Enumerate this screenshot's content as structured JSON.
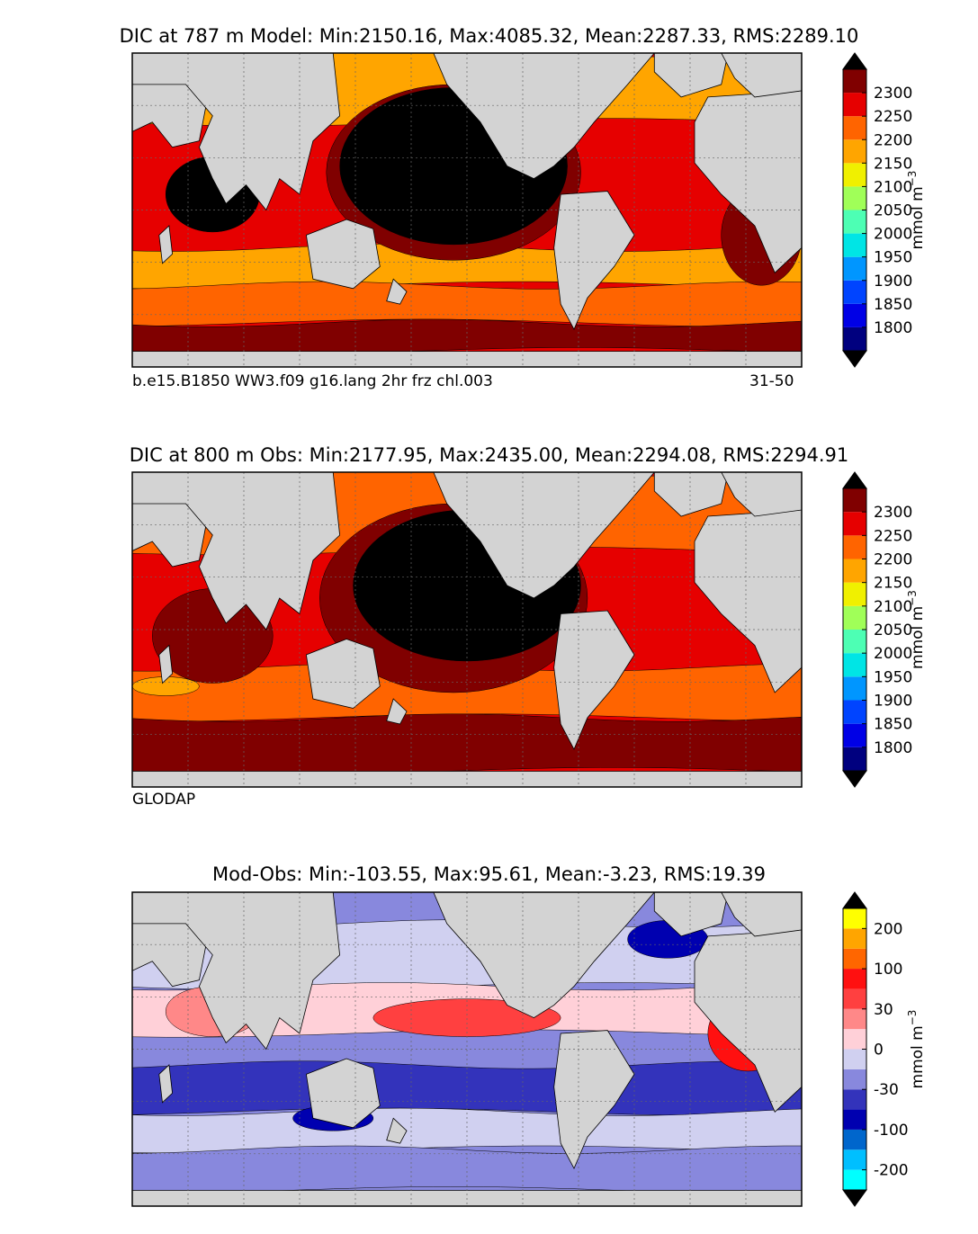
{
  "chart_data": [
    {
      "type": "heatmap",
      "title": "DIC at 787 m Model: Min:2150.16, Max:4085.32, Mean:2287.33, RMS:2289.10",
      "caption_left": "b.e15.B1850 WW3.f09 g16.lang 2hr frz chl.003",
      "caption_right": "31-50",
      "colorbar_label": "mmol m",
      "colorbar_label_exponent": "−3",
      "colorbar_ticks": [
        "1800",
        "1850",
        "1900",
        "1950",
        "2000",
        "2050",
        "2100",
        "2150",
        "2200",
        "2250",
        "2300"
      ],
      "colorbar_colors": [
        "#00007f",
        "#0000e6",
        "#0044ff",
        "#0096ff",
        "#00e5e5",
        "#4dffb4",
        "#a0ff58",
        "#f0f000",
        "#ffa500",
        "#ff6400",
        "#e60000",
        "#800000"
      ],
      "extend": "both",
      "map_colors": {
        "land": "#d3d3d3",
        "missing": "#ffffff",
        "high": "#000000"
      }
    },
    {
      "type": "heatmap",
      "title": "DIC at 800 m Obs: Min:2177.95, Max:2435.00, Mean:2294.08, RMS:2294.91",
      "caption_left": "GLODAP",
      "caption_right": "",
      "colorbar_label": "mmol m",
      "colorbar_label_exponent": "−3",
      "colorbar_ticks": [
        "1800",
        "1850",
        "1900",
        "1950",
        "2000",
        "2050",
        "2100",
        "2150",
        "2200",
        "2250",
        "2300"
      ],
      "colorbar_colors": [
        "#00007f",
        "#0000e6",
        "#0044ff",
        "#0096ff",
        "#00e5e5",
        "#4dffb4",
        "#a0ff58",
        "#f0f000",
        "#ffa500",
        "#ff6400",
        "#e60000",
        "#800000"
      ],
      "extend": "both",
      "map_colors": {
        "land": "#d3d3d3",
        "missing": "#ffffff",
        "high": "#000000"
      }
    },
    {
      "type": "heatmap",
      "title": "Mod-Obs: Min:-103.55, Max:95.61, Mean:-3.23, RMS:19.39",
      "caption_left": "",
      "caption_right": "",
      "colorbar_label": "mmol m",
      "colorbar_label_exponent": "−3",
      "colorbar_ticks": [
        "-200",
        "-100",
        "-30",
        "0",
        "30",
        "100",
        "200"
      ],
      "colorbar_colors": [
        "#00ffff",
        "#00bfff",
        "#0066cc",
        "#0000b0",
        "#3333bb",
        "#8888dd",
        "#d0d0f0",
        "#ffd0d8",
        "#ff8888",
        "#ff4040",
        "#ff1010",
        "#ff6600",
        "#ffa500",
        "#ffff00"
      ],
      "extend": "both",
      "map_colors": {
        "land": "#d3d3d3",
        "missing": "#ffffff"
      }
    }
  ]
}
